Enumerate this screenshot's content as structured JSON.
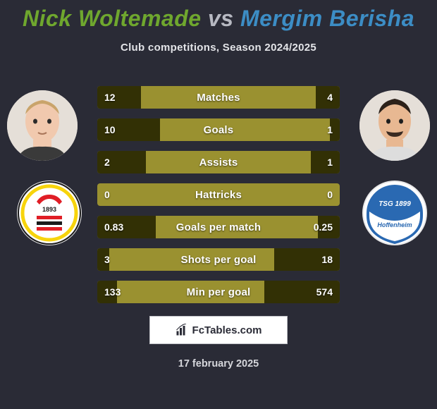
{
  "background_color": "#2a2b36",
  "title": {
    "player1": "Nick Woltemade",
    "vs": "vs",
    "player2": "Mergim Berisha",
    "p1_color": "#6fa72e",
    "vs_color": "#b7b9c2",
    "p2_color": "#3c8dc5",
    "fontsize": 32
  },
  "subtitle": {
    "text": "Club competitions, Season 2024/2025",
    "fontsize": 15
  },
  "bars": {
    "bg_color": "#9a9130",
    "fill_color": "#323005",
    "label_fontsize": 15,
    "value_fontsize": 14,
    "rows": [
      {
        "label": "Matches",
        "left": "12",
        "right": "4",
        "left_pct": 18,
        "right_pct": 10
      },
      {
        "label": "Goals",
        "left": "10",
        "right": "1",
        "left_pct": 26,
        "right_pct": 4
      },
      {
        "label": "Assists",
        "left": "2",
        "right": "1",
        "left_pct": 20,
        "right_pct": 12
      },
      {
        "label": "Hattricks",
        "left": "0",
        "right": "0",
        "left_pct": 0,
        "right_pct": 0
      },
      {
        "label": "Goals per match",
        "left": "0.83",
        "right": "0.25",
        "left_pct": 24,
        "right_pct": 9
      },
      {
        "label": "Shots per goal",
        "left": "3",
        "right": "18",
        "left_pct": 5,
        "right_pct": 27
      },
      {
        "label": "Min per goal",
        "left": "133",
        "right": "574",
        "left_pct": 8,
        "right_pct": 31
      }
    ]
  },
  "club_left": {
    "name": "VfB Stuttgart",
    "primary": "#e01e26",
    "secondary": "#f7d40c",
    "text": "1893"
  },
  "club_right": {
    "name": "TSG 1899 Hoffenheim",
    "primary": "#2a69b2",
    "text_top": "TSG 1899",
    "text_bottom": "Hoffenheim"
  },
  "branding": {
    "text": "FcTables.com"
  },
  "date": {
    "text": "17 february 2025"
  }
}
